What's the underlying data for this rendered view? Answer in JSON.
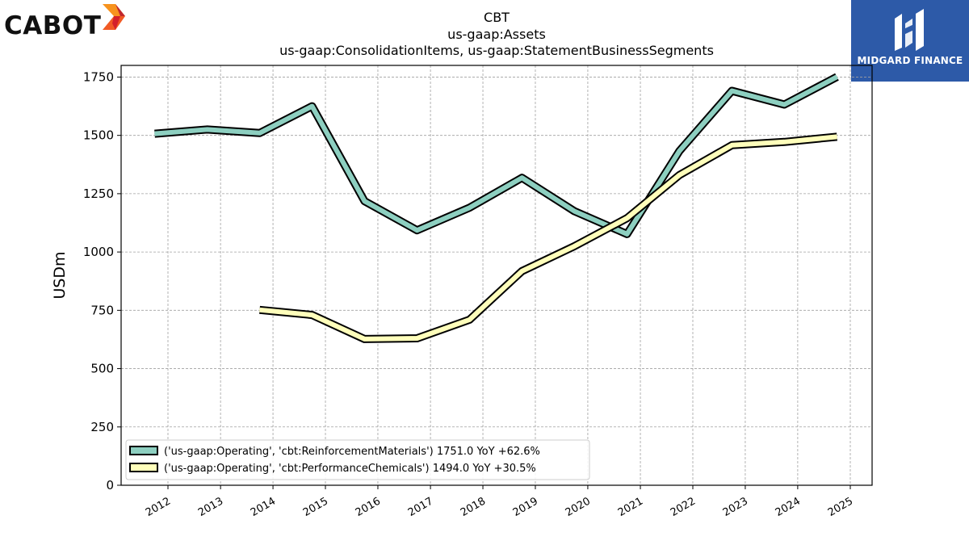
{
  "header": {
    "company_logo_text": "CABOT",
    "brand_logo_text": "MIDGARD FINANCE"
  },
  "colors": {
    "series_1": "#8dcfc0",
    "series_2": "#ffffbb",
    "outline": "#000000",
    "grid": "#a0a0a0",
    "midgard_blue": "#2d5aa8",
    "cabot_orange": "#f15a24"
  },
  "chart_data": {
    "type": "line",
    "title": "CBT",
    "subtitle_1": "us-gaap:Assets",
    "subtitle_2": "us-gaap:ConsolidationItems, us-gaap:StatementBusinessSegments",
    "xlabel": "",
    "ylabel": "USDm",
    "ylim": [
      0,
      1800
    ],
    "y_ticks": [
      0,
      250,
      500,
      750,
      1000,
      1250,
      1500,
      1750
    ],
    "x_ticks": [
      "2012",
      "2013",
      "2014",
      "2015",
      "2016",
      "2017",
      "2018",
      "2019",
      "2020",
      "2021",
      "2022",
      "2023",
      "2024",
      "2025"
    ],
    "grid": true,
    "legend_position": "bottom-left",
    "series": [
      {
        "name": "('us-gaap:Operating', 'cbt:ReinforcementMaterials') 1751.0 YoY +62.6%",
        "x": [
          "2011-09-30",
          "2012-09-30",
          "2013-09-30",
          "2014-09-30",
          "2015-09-30",
          "2016-09-30",
          "2017-09-30",
          "2018-09-30",
          "2019-09-30",
          "2020-09-30",
          "2021-09-30",
          "2022-09-30",
          "2023-09-30",
          "2024-09-30"
        ],
        "values": [
          1507,
          1525,
          1510,
          1625,
          1218,
          1093,
          1190,
          1318,
          1175,
          1077,
          1433,
          1691,
          1632,
          1751
        ]
      },
      {
        "name": "('us-gaap:Operating', 'cbt:PerformanceChemicals') 1494.0 YoY +30.5%",
        "x": [
          "2013-09-30",
          "2014-09-30",
          "2015-09-30",
          "2016-09-30",
          "2017-09-30",
          "2018-09-30",
          "2019-09-30",
          "2020-09-30",
          "2021-09-30",
          "2022-09-30",
          "2023-09-30",
          "2024-09-30"
        ],
        "values": [
          752,
          730,
          627,
          630,
          710,
          918,
          1025,
          1145,
          1330,
          1458,
          1472,
          1494
        ]
      }
    ]
  }
}
